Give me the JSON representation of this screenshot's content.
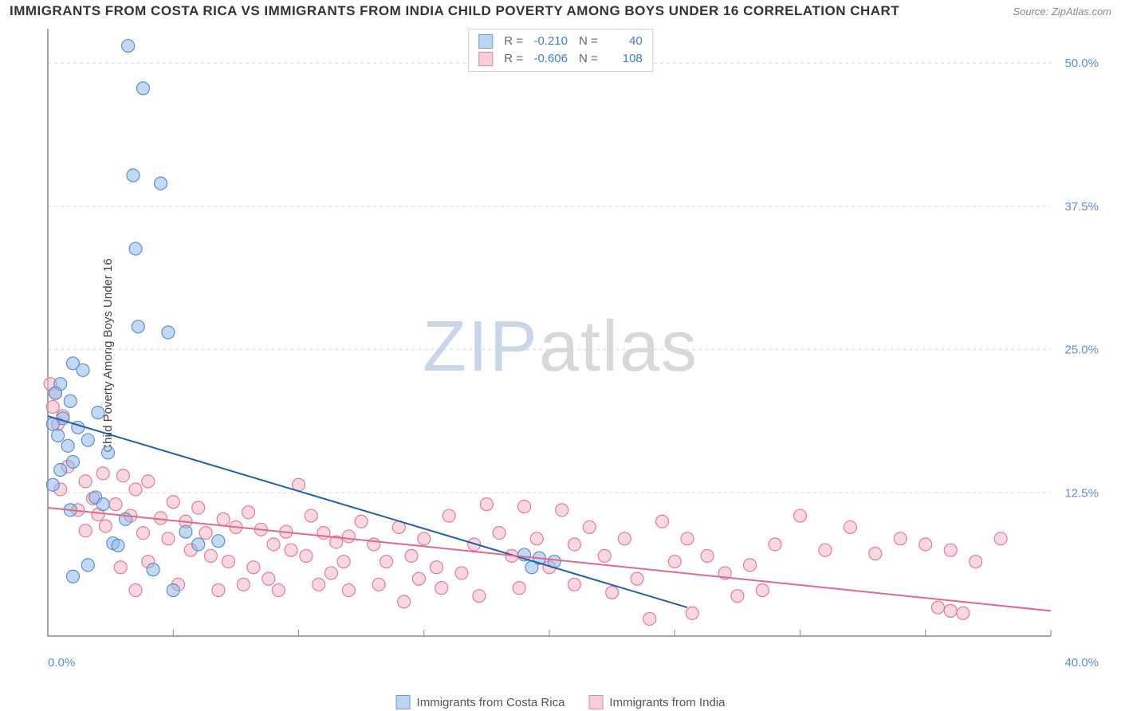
{
  "title": "IMMIGRANTS FROM COSTA RICA VS IMMIGRANTS FROM INDIA CHILD POVERTY AMONG BOYS UNDER 16 CORRELATION CHART",
  "source": "Source: ZipAtlas.com",
  "y_axis_label": "Child Poverty Among Boys Under 16",
  "watermark": {
    "zip": "ZIP",
    "rest": "atlas"
  },
  "chart": {
    "type": "scatter",
    "xlim": [
      0,
      40
    ],
    "ylim": [
      0,
      53
    ],
    "x_ticks": [
      0,
      5,
      10,
      15,
      20,
      25,
      30,
      35,
      40
    ],
    "x_tick_labels": {
      "0": "0.0%",
      "40": "40.0%"
    },
    "y_ticks": [
      12.5,
      25.0,
      37.5,
      50.0
    ],
    "y_tick_labels": [
      "12.5%",
      "25.0%",
      "37.5%",
      "50.0%"
    ],
    "grid_color": "#d8d8d8",
    "background_color": "#ffffff",
    "marker_radius": 8,
    "marker_opacity": 0.55,
    "line_width": 2,
    "tick_label_color": "#5a8fd6",
    "series": [
      {
        "name": "Immigrants from Costa Rica",
        "color": "#8fb9e5",
        "stroke": "#5a8fd6",
        "swatch_fill": "#bcd5f0",
        "swatch_border": "#6a9cd8",
        "R": "-0.210",
        "N": "40",
        "trend": {
          "x1": 0,
          "y1": 19.2,
          "x2": 25.5,
          "y2": 2.5,
          "color": "#1f5fb0"
        },
        "points": [
          [
            3.2,
            51.5
          ],
          [
            3.8,
            47.8
          ],
          [
            3.4,
            40.2
          ],
          [
            4.5,
            39.5
          ],
          [
            3.5,
            33.8
          ],
          [
            3.6,
            27.0
          ],
          [
            4.8,
            26.5
          ],
          [
            1.0,
            23.8
          ],
          [
            1.4,
            23.2
          ],
          [
            0.5,
            22.0
          ],
          [
            0.3,
            21.2
          ],
          [
            0.9,
            20.5
          ],
          [
            2.0,
            19.5
          ],
          [
            0.6,
            19.0
          ],
          [
            0.2,
            18.5
          ],
          [
            1.2,
            18.2
          ],
          [
            0.4,
            17.5
          ],
          [
            1.6,
            17.1
          ],
          [
            0.8,
            16.6
          ],
          [
            2.4,
            16.0
          ],
          [
            1.0,
            15.2
          ],
          [
            0.5,
            14.5
          ],
          [
            0.2,
            13.2
          ],
          [
            1.9,
            12.1
          ],
          [
            2.2,
            11.5
          ],
          [
            0.9,
            11.0
          ],
          [
            3.1,
            10.2
          ],
          [
            5.5,
            9.1
          ],
          [
            2.6,
            8.1
          ],
          [
            2.8,
            7.9
          ],
          [
            6.0,
            8.0
          ],
          [
            6.8,
            8.3
          ],
          [
            1.6,
            6.2
          ],
          [
            4.2,
            5.8
          ],
          [
            1.0,
            5.2
          ],
          [
            5.0,
            4.0
          ],
          [
            19.0,
            7.1
          ],
          [
            19.6,
            6.8
          ],
          [
            20.2,
            6.5
          ],
          [
            19.3,
            6.0
          ]
        ]
      },
      {
        "name": "Immigrants from India",
        "color": "#f3b8c6",
        "stroke": "#e47a98",
        "swatch_fill": "#f7cdd8",
        "swatch_border": "#e08aa2",
        "R": "-0.606",
        "N": "108",
        "trend": {
          "x1": 0,
          "y1": 11.2,
          "x2": 40,
          "y2": 2.2,
          "color": "#e06a88"
        },
        "points": [
          [
            0.1,
            22.0
          ],
          [
            0.3,
            21.2
          ],
          [
            0.2,
            20.0
          ],
          [
            0.6,
            19.2
          ],
          [
            0.4,
            18.5
          ],
          [
            2.2,
            14.2
          ],
          [
            3.0,
            14.0
          ],
          [
            4.0,
            13.5
          ],
          [
            3.5,
            12.8
          ],
          [
            1.8,
            12.0
          ],
          [
            2.7,
            11.5
          ],
          [
            5.0,
            11.7
          ],
          [
            6.0,
            11.2
          ],
          [
            1.2,
            11.0
          ],
          [
            2.0,
            10.6
          ],
          [
            3.3,
            10.5
          ],
          [
            4.5,
            10.3
          ],
          [
            5.5,
            10.0
          ],
          [
            7.0,
            10.2
          ],
          [
            8.0,
            10.8
          ],
          [
            7.5,
            9.5
          ],
          [
            6.3,
            9.0
          ],
          [
            2.3,
            9.6
          ],
          [
            1.5,
            9.2
          ],
          [
            3.8,
            9.0
          ],
          [
            4.8,
            8.5
          ],
          [
            8.5,
            9.3
          ],
          [
            9.5,
            9.1
          ],
          [
            10.0,
            13.2
          ],
          [
            10.5,
            10.5
          ],
          [
            11.0,
            9.0
          ],
          [
            11.5,
            8.2
          ],
          [
            12.0,
            8.7
          ],
          [
            9.0,
            8.0
          ],
          [
            9.7,
            7.5
          ],
          [
            10.3,
            7.0
          ],
          [
            5.7,
            7.5
          ],
          [
            6.5,
            7.0
          ],
          [
            7.2,
            6.5
          ],
          [
            8.2,
            6.0
          ],
          [
            4.0,
            6.5
          ],
          [
            2.9,
            6.0
          ],
          [
            11.8,
            6.5
          ],
          [
            13.0,
            8.0
          ],
          [
            13.5,
            6.5
          ],
          [
            14.0,
            9.5
          ],
          [
            14.5,
            7.0
          ],
          [
            15.0,
            8.5
          ],
          [
            15.5,
            6.0
          ],
          [
            16.0,
            10.5
          ],
          [
            17.0,
            8.0
          ],
          [
            17.5,
            11.5
          ],
          [
            18.0,
            9.0
          ],
          [
            18.5,
            7.0
          ],
          [
            19.0,
            11.3
          ],
          [
            19.5,
            8.5
          ],
          [
            20.0,
            6.0
          ],
          [
            20.5,
            11.0
          ],
          [
            21.0,
            8.0
          ],
          [
            21.6,
            9.5
          ],
          [
            22.2,
            7.0
          ],
          [
            23.0,
            8.5
          ],
          [
            23.5,
            5.0
          ],
          [
            24.0,
            1.5
          ],
          [
            24.5,
            10.0
          ],
          [
            25.0,
            6.5
          ],
          [
            25.5,
            8.5
          ],
          [
            26.3,
            7.0
          ],
          [
            27.0,
            5.5
          ],
          [
            25.7,
            2.0
          ],
          [
            28.0,
            6.2
          ],
          [
            29.0,
            8.0
          ],
          [
            30.0,
            10.5
          ],
          [
            31.0,
            7.5
          ],
          [
            32.0,
            9.5
          ],
          [
            33.0,
            7.2
          ],
          [
            34.0,
            8.5
          ],
          [
            35.0,
            8.0
          ],
          [
            36.0,
            7.5
          ],
          [
            35.5,
            2.5
          ],
          [
            36.0,
            2.2
          ],
          [
            36.5,
            2.0
          ],
          [
            38.0,
            8.5
          ],
          [
            37.0,
            6.5
          ],
          [
            12.5,
            10.0
          ],
          [
            13.2,
            4.5
          ],
          [
            14.8,
            5.0
          ],
          [
            16.5,
            5.5
          ],
          [
            12.0,
            4.0
          ],
          [
            10.8,
            4.5
          ],
          [
            8.8,
            5.0
          ],
          [
            11.3,
            5.5
          ],
          [
            15.7,
            4.2
          ],
          [
            9.2,
            4.0
          ],
          [
            7.8,
            4.5
          ],
          [
            6.8,
            4.0
          ],
          [
            5.2,
            4.5
          ],
          [
            3.5,
            4.0
          ],
          [
            14.2,
            3.0
          ],
          [
            0.8,
            14.8
          ],
          [
            1.5,
            13.5
          ],
          [
            0.5,
            12.8
          ],
          [
            27.5,
            3.5
          ],
          [
            28.5,
            4.0
          ],
          [
            21.0,
            4.5
          ],
          [
            22.5,
            3.8
          ],
          [
            17.2,
            3.5
          ],
          [
            18.8,
            4.2
          ]
        ]
      }
    ]
  }
}
